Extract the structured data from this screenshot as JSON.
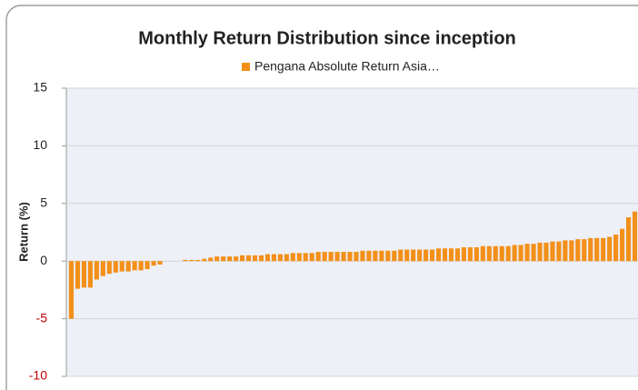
{
  "chart_data": {
    "type": "bar",
    "title": "Monthly Return Distribution since inception",
    "y_label": "Return (%)",
    "series": [
      {
        "name": "Pengana Absolute Return Asia…",
        "color": "#f39019",
        "values": [
          -5.0,
          -2.4,
          -2.3,
          -2.3,
          -1.6,
          -1.3,
          -1.1,
          -1.0,
          -0.9,
          -0.9,
          -0.8,
          -0.8,
          -0.7,
          -0.4,
          -0.3,
          0,
          0,
          0,
          0.1,
          0.1,
          0.1,
          0.2,
          0.3,
          0.4,
          0.4,
          0.4,
          0.4,
          0.5,
          0.5,
          0.5,
          0.5,
          0.6,
          0.6,
          0.6,
          0.6,
          0.7,
          0.7,
          0.7,
          0.7,
          0.8,
          0.8,
          0.8,
          0.8,
          0.8,
          0.8,
          0.8,
          0.9,
          0.9,
          0.9,
          0.9,
          0.9,
          0.9,
          1.0,
          1.0,
          1.0,
          1.0,
          1.0,
          1.0,
          1.1,
          1.1,
          1.1,
          1.1,
          1.2,
          1.2,
          1.2,
          1.3,
          1.3,
          1.3,
          1.3,
          1.3,
          1.4,
          1.4,
          1.5,
          1.5,
          1.6,
          1.6,
          1.7,
          1.7,
          1.8,
          1.8,
          1.9,
          1.9,
          2.0,
          2.0,
          2.0,
          2.1,
          2.3,
          2.8,
          3.8,
          4.3
        ]
      }
    ],
    "ylim": [
      -10,
      15
    ],
    "yticks": [
      -10,
      -5,
      0,
      5,
      10,
      15
    ],
    "grid": true,
    "negative_tick_color": "#c00000",
    "legend": "top"
  }
}
